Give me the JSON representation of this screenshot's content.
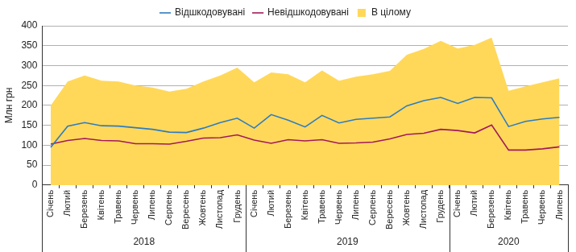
{
  "chart_data": {
    "type": "line",
    "y_label": "Млн грн",
    "categories": [
      "Січень",
      "Лютий",
      "Березень",
      "Квітень",
      "Травень",
      "Червень",
      "Липень",
      "Серпень",
      "Вересень",
      "Жовтень",
      "Листопад",
      "Грудень",
      "Січень",
      "Лютий",
      "Березень",
      "Квітень",
      "Травень",
      "Червень",
      "Липень",
      "Серпень",
      "Вересень",
      "Жовтень",
      "Листопад",
      "Грудень",
      "Січень",
      "Лютий",
      "Березень",
      "Квітень",
      "Травень",
      "Червень",
      "Липень"
    ],
    "x_groups": [
      {
        "label": "2018",
        "count": 12
      },
      {
        "label": "2019",
        "count": 12
      },
      {
        "label": "2020",
        "count": 7
      }
    ],
    "series": [
      {
        "name": "В цілому",
        "type": "area",
        "color": "#FFD85A",
        "values": [
          200,
          260,
          275,
          262,
          260,
          250,
          245,
          235,
          242,
          260,
          275,
          295,
          258,
          283,
          278,
          258,
          288,
          262,
          272,
          278,
          287,
          327,
          342,
          362,
          343,
          352,
          370,
          237,
          248,
          258,
          268
        ]
      },
      {
        "name": "Відшкодовувані",
        "type": "line",
        "color": "#2F7BBF",
        "values": [
          95,
          148,
          157,
          149,
          148,
          144,
          140,
          133,
          132,
          143,
          157,
          168,
          143,
          177,
          163,
          146,
          175,
          156,
          165,
          168,
          171,
          199,
          212,
          220,
          205,
          220,
          219,
          147,
          160,
          166,
          170
        ]
      },
      {
        "name": "Невідшкодовувані",
        "type": "line",
        "color": "#A3195B",
        "values": [
          103,
          112,
          117,
          112,
          111,
          104,
          104,
          103,
          110,
          118,
          119,
          126,
          113,
          105,
          114,
          111,
          114,
          105,
          106,
          108,
          116,
          127,
          130,
          140,
          137,
          131,
          151,
          88,
          88,
          91,
          96
        ]
      }
    ],
    "ylim": [
      0,
      400
    ],
    "yticks": [
      0,
      50,
      100,
      150,
      200,
      250,
      300,
      350,
      400
    ],
    "grid": true,
    "legend": "top"
  }
}
